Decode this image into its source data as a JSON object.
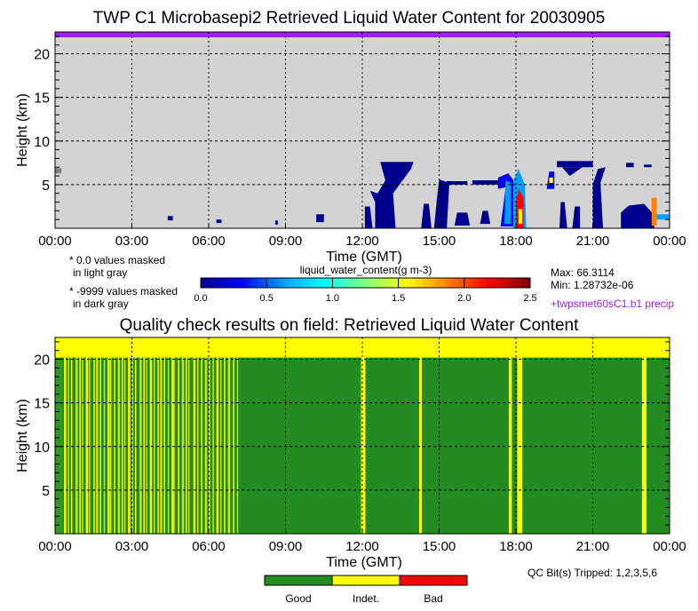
{
  "chart_data": [
    {
      "type": "heatmap",
      "title": "TWP C1 Microbasepi2 Retrieved Liquid Water Content for 20030905",
      "xlabel": "Time (GMT)",
      "ylabel": "Height (km)",
      "xlim": [
        0,
        24
      ],
      "ylim": [
        0,
        22.5
      ],
      "xticks": [
        "00:00",
        "03:00",
        "06:00",
        "09:00",
        "12:00",
        "15:00",
        "18:00",
        "21:00",
        "00:00"
      ],
      "yticks": [
        {
          "v": 5,
          "label": "5"
        },
        {
          "v": 10,
          "label": "10"
        },
        {
          "v": 15,
          "label": "15"
        },
        {
          "v": 20,
          "label": "20"
        }
      ],
      "grid": true,
      "background_color": "#d3d3d3",
      "precip_bar_color": "#a020f0",
      "colorbar": {
        "label": "liquid_water_content(g m-3)",
        "range": [
          0,
          2.5
        ],
        "ticks": [
          "0.0",
          "0.5",
          "1.0",
          "1.5",
          "2.0",
          "2.5"
        ],
        "colors": [
          "#00008f",
          "#0000ff",
          "#00a0ff",
          "#00ffff",
          "#80ff80",
          "#ffff00",
          "#ff8000",
          "#ff0000",
          "#800000"
        ]
      },
      "notes": [
        "* 0.0 values masked",
        "in light gray",
        "* -9999 values masked",
        "in dark gray"
      ],
      "stats": {
        "max": "Max: 66.3114",
        "min": "Min: 1.28732e-06",
        "precip": "+twpsmet60sC1.b1 precip"
      },
      "features": [
        {
          "pts": [
            [
              0,
              6.3
            ],
            [
              0.25,
              6.3
            ],
            [
              0.25,
              6.9
            ],
            [
              0,
              6.9
            ]
          ],
          "value": -9999
        },
        {
          "pts": [
            [
              4.4,
              0.9
            ],
            [
              4.6,
              0.9
            ],
            [
              4.6,
              1.4
            ],
            [
              4.4,
              1.4
            ]
          ],
          "value": 0.1
        },
        {
          "pts": [
            [
              6.3,
              0.6
            ],
            [
              6.5,
              0.6
            ],
            [
              6.5,
              1.0
            ],
            [
              6.3,
              1.0
            ]
          ],
          "value": 0.1
        },
        {
          "pts": [
            [
              8.6,
              0.4
            ],
            [
              8.7,
              0.4
            ],
            [
              8.7,
              0.9
            ],
            [
              8.6,
              0.9
            ]
          ],
          "value": 0.1
        },
        {
          "pts": [
            [
              10.2,
              0.7
            ],
            [
              10.5,
              0.7
            ],
            [
              10.5,
              1.6
            ],
            [
              10.2,
              1.6
            ]
          ],
          "value": 0.1
        },
        {
          "pts": [
            [
              12.1,
              0
            ],
            [
              12.4,
              0
            ],
            [
              12.3,
              2.5
            ],
            [
              12.1,
              2.5
            ]
          ],
          "value": 0.15
        },
        {
          "pts": [
            [
              12.5,
              0
            ],
            [
              13.3,
              0
            ],
            [
              13.2,
              4
            ],
            [
              13.9,
              6.8
            ],
            [
              14.0,
              7.6
            ],
            [
              12.7,
              7.6
            ],
            [
              12.9,
              5.5
            ],
            [
              12.6,
              4
            ],
            [
              12.3,
              4.3
            ],
            [
              12.5,
              3
            ]
          ],
          "value": 0.1
        },
        {
          "pts": [
            [
              14.3,
              0
            ],
            [
              14.7,
              0
            ],
            [
              14.6,
              2.8
            ],
            [
              14.4,
              2.8
            ]
          ],
          "value": 0.15
        },
        {
          "pts": [
            [
              14.8,
              0
            ],
            [
              15.3,
              0
            ],
            [
              15.4,
              5.2
            ],
            [
              15.0,
              5.6
            ],
            [
              14.9,
              3
            ]
          ],
          "value": 0.15
        },
        {
          "pts": [
            [
              15.6,
              0.3
            ],
            [
              16.2,
              0.3
            ],
            [
              16.1,
              1.8
            ],
            [
              15.7,
              1.8
            ]
          ],
          "value": 0.1
        },
        {
          "pts": [
            [
              16.6,
              0.5
            ],
            [
              17.0,
              0.5
            ],
            [
              16.9,
              2.0
            ],
            [
              16.7,
              2.0
            ]
          ],
          "value": 0.1
        },
        {
          "pts": [
            [
              15.3,
              5.0
            ],
            [
              16.1,
              5.0
            ],
            [
              16.1,
              5.4
            ],
            [
              15.3,
              5.4
            ]
          ],
          "value": 0.1
        },
        {
          "pts": [
            [
              16.3,
              5.0
            ],
            [
              17.3,
              5.0
            ],
            [
              17.3,
              5.5
            ],
            [
              16.3,
              5.5
            ]
          ],
          "value": 0.1
        },
        {
          "pts": [
            [
              17.4,
              0.2
            ],
            [
              17.9,
              0.2
            ],
            [
              17.9,
              5.5
            ],
            [
              17.7,
              6.3
            ],
            [
              17.3,
              5.8
            ],
            [
              17.3,
              4.5
            ],
            [
              17.6,
              4.7
            ]
          ],
          "value": 0.25
        },
        {
          "pts": [
            [
              17.55,
              0.5
            ],
            [
              17.8,
              0.5
            ],
            [
              17.8,
              5.2
            ],
            [
              17.6,
              5.5
            ]
          ],
          "value": 0.7
        },
        {
          "pts": [
            [
              17.9,
              0
            ],
            [
              18.4,
              0
            ],
            [
              18.35,
              5
            ],
            [
              18.1,
              6.8
            ],
            [
              17.9,
              5.5
            ]
          ],
          "value": 0.6
        },
        {
          "pts": [
            [
              18.0,
              0
            ],
            [
              18.3,
              0
            ],
            [
              18.3,
              3.5
            ],
            [
              18.1,
              4.5
            ],
            [
              18.0,
              3
            ]
          ],
          "value": 2.3
        },
        {
          "pts": [
            [
              18.1,
              0.5
            ],
            [
              18.25,
              0.5
            ],
            [
              18.25,
              2.2
            ],
            [
              18.1,
              2.2
            ]
          ],
          "value": 1.6
        },
        {
          "pts": [
            [
              19.2,
              4.5
            ],
            [
              19.5,
              4.5
            ],
            [
              19.5,
              6.5
            ],
            [
              19.3,
              6.5
            ]
          ],
          "value": 0.4
        },
        {
          "pts": [
            [
              19.3,
              5.2
            ],
            [
              19.45,
              5.2
            ],
            [
              19.45,
              5.8
            ],
            [
              19.3,
              5.8
            ]
          ],
          "value": 1.5
        },
        {
          "pts": [
            [
              19.7,
              0
            ],
            [
              20.0,
              0
            ],
            [
              19.9,
              3
            ],
            [
              19.75,
              3
            ]
          ],
          "value": 0.1
        },
        {
          "pts": [
            [
              20.2,
              0
            ],
            [
              20.5,
              0
            ],
            [
              20.5,
              2.5
            ],
            [
              20.3,
              2.5
            ]
          ],
          "value": 0.1
        },
        {
          "pts": [
            [
              19.6,
              7.0
            ],
            [
              21.0,
              7.0
            ],
            [
              21.0,
              7.7
            ],
            [
              19.6,
              7.7
            ]
          ],
          "value": 0.1
        },
        {
          "pts": [
            [
              20.1,
              6.0
            ],
            [
              20.6,
              7.0
            ],
            [
              19.8,
              7.0
            ]
          ],
          "value": 0.1
        },
        {
          "pts": [
            [
              21.0,
              0
            ],
            [
              21.4,
              0
            ],
            [
              21.3,
              5.2
            ],
            [
              21.5,
              7.0
            ],
            [
              21.2,
              6.8
            ],
            [
              21.0,
              5
            ]
          ],
          "value": 0.1
        },
        {
          "pts": [
            [
              22.1,
              0
            ],
            [
              23.4,
              0
            ],
            [
              23.4,
              1.5
            ],
            [
              23.0,
              2.8
            ],
            [
              22.4,
              2.6
            ],
            [
              22.1,
              1.8
            ]
          ],
          "value": 0.1
        },
        {
          "pts": [
            [
              23.3,
              0.3
            ],
            [
              23.5,
              0.3
            ],
            [
              23.5,
              3.5
            ],
            [
              23.3,
              3.5
            ]
          ],
          "value": 1.8
        },
        {
          "pts": [
            [
              23.5,
              1.0
            ],
            [
              24.0,
              1.0
            ],
            [
              24.0,
              1.6
            ],
            [
              23.5,
              1.6
            ]
          ],
          "value": 0.6
        },
        {
          "pts": [
            [
              22.3,
              7.0
            ],
            [
              22.6,
              7.0
            ],
            [
              22.6,
              7.5
            ],
            [
              22.3,
              7.5
            ]
          ],
          "value": 0.1
        },
        {
          "pts": [
            [
              23.0,
              7.0
            ],
            [
              23.3,
              7.0
            ],
            [
              23.3,
              7.3
            ],
            [
              23.0,
              7.3
            ]
          ],
          "value": 0.1
        }
      ]
    },
    {
      "type": "heatmap",
      "title": "Quality check results on field: Retrieved Liquid Water Content",
      "xlabel": "Time (GMT)",
      "ylabel": "Height (km)",
      "xlim": [
        0,
        24
      ],
      "ylim": [
        0,
        22.5
      ],
      "xticks": [
        "00:00",
        "03:00",
        "06:00",
        "09:00",
        "12:00",
        "15:00",
        "18:00",
        "21:00",
        "00:00"
      ],
      "yticks": [
        {
          "v": 5,
          "label": "5"
        },
        {
          "v": 10,
          "label": "10"
        },
        {
          "v": 15,
          "label": "15"
        },
        {
          "v": 20,
          "label": "20"
        }
      ],
      "grid": true,
      "top_indeterminate_above_km": 20.2,
      "indeterminate_columns_hours": [
        0.35,
        0.5,
        0.62,
        0.8,
        0.95,
        1.05,
        1.2,
        1.32,
        1.5,
        1.6,
        1.75,
        1.9,
        2.05,
        2.15,
        2.3,
        2.45,
        2.6,
        2.7,
        2.85,
        3.0,
        3.12,
        3.3,
        3.45,
        3.55,
        3.7,
        3.85,
        4.0,
        4.1,
        4.25,
        4.4,
        4.55,
        4.62,
        4.8,
        4.95,
        5.1,
        5.2,
        5.4,
        5.55,
        5.7,
        5.85,
        6.0,
        6.15,
        6.3,
        6.45,
        6.6,
        6.75,
        6.95,
        7.1
      ],
      "indeterminate_bands_hours": [
        [
          11.95,
          12.12
        ],
        [
          14.22,
          14.32
        ],
        [
          17.72,
          17.84
        ],
        [
          18.05,
          18.25
        ],
        [
          22.92,
          23.1
        ]
      ],
      "legend": [
        {
          "label": "Good",
          "color": "#228b22"
        },
        {
          "label": "Indet.",
          "color": "#ffff00"
        },
        {
          "label": "Bad",
          "color": "#ff0000"
        }
      ],
      "qc_bits": "QC Bit(s) Tripped: 1,2,3,5,6"
    }
  ]
}
